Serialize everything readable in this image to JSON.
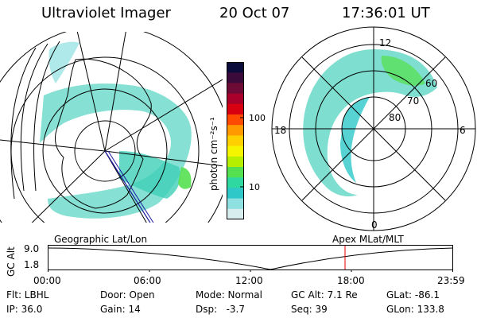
{
  "header": {
    "instrument": "Ultraviolet Imager",
    "date": "20 Oct 07",
    "time": "17:36:01 UT"
  },
  "colorbar": {
    "unit_label": "photon cm⁻²s⁻¹",
    "ticks": [
      "100",
      "10"
    ],
    "colors": [
      "#0b0b3b",
      "#3a0a3a",
      "#6e0a36",
      "#a8002a",
      "#d80010",
      "#ff4a00",
      "#ff9a00",
      "#ffd000",
      "#f5f500",
      "#b6f000",
      "#55e050",
      "#2ed8a0",
      "#2ec8c8",
      "#8fe0e0",
      "#d8eeee"
    ]
  },
  "polar_right": {
    "lat_labels": [
      "60",
      "70",
      "80"
    ],
    "mlt_labels": [
      "12",
      "18",
      "6",
      "0"
    ]
  },
  "timeline": {
    "left_label": "Geographic Lat/Lon",
    "right_label": "Apex MLat/MLT",
    "axis_label": "GC Alt",
    "y_ticks": [
      "9.0",
      "1.8"
    ],
    "x_ticks": [
      "00:00",
      "06:00",
      "12:00",
      "18:00",
      "23:59"
    ],
    "current_time_hours": 17.6
  },
  "info": {
    "filter": "Flt: LBHL",
    "ip": "IP: 36.0",
    "door": "Door: Open",
    "gain": "Gain: 14",
    "mode": "Mode: Normal",
    "dsp": "Dsp:   -3.7",
    "gc_alt": "GC Alt: 7.1 Re",
    "seq": "Seq: 39",
    "glat": "GLat: -86.1",
    "glon": "GLon: 133.8"
  }
}
